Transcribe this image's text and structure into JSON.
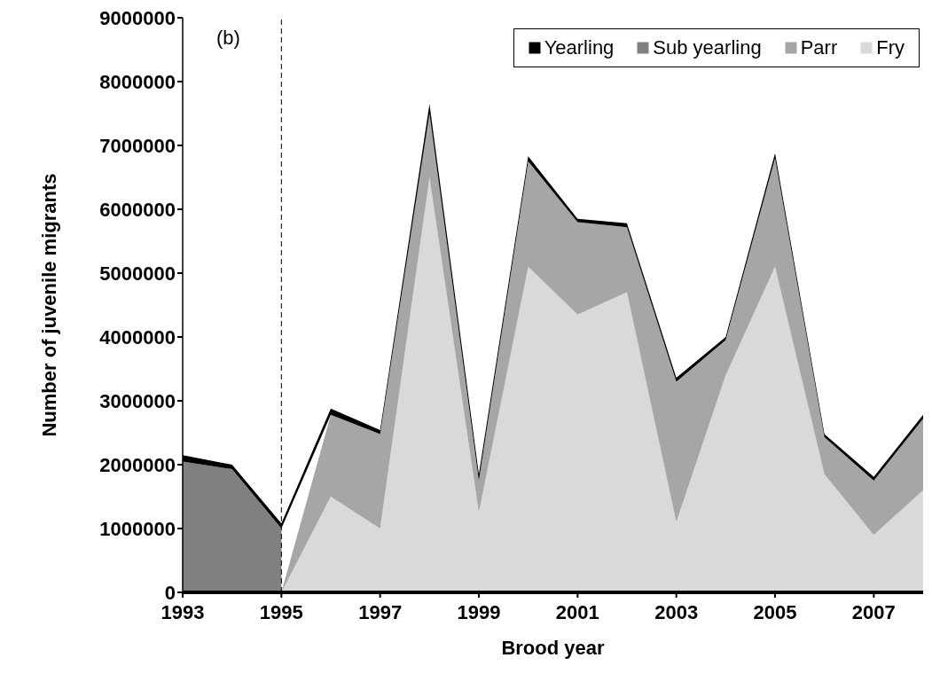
{
  "chart_data": {
    "type": "area",
    "stacked": true,
    "xlabel": "Brood year",
    "ylabel": "Number of juvenile migrants",
    "annotations": [
      "(b)"
    ],
    "x": [
      1993,
      1994,
      1995,
      1996,
      1997,
      1998,
      1999,
      2000,
      2001,
      2002,
      2003,
      2004,
      2005,
      2006,
      2007,
      2008
    ],
    "series": [
      {
        "name": "Fry",
        "color": "#d9d9d9",
        "values": [
          null,
          null,
          0,
          1500000,
          1000000,
          6500000,
          1250000,
          5100000,
          4350000,
          4700000,
          1100000,
          3400000,
          5100000,
          1850000,
          900000,
          1600000
        ]
      },
      {
        "name": "Parr",
        "color": "#a6a6a6",
        "values": [
          null,
          null,
          0,
          1280000,
          1480000,
          1000000,
          500000,
          1650000,
          1450000,
          1020000,
          2200000,
          550000,
          1700000,
          580000,
          850000,
          1120000
        ]
      },
      {
        "name": "Sub yearling",
        "color": "#808080",
        "values": [
          2050000,
          1930000,
          1000000,
          null,
          null,
          null,
          null,
          null,
          null,
          null,
          null,
          null,
          null,
          null,
          null,
          null
        ]
      },
      {
        "name": "Yearling",
        "color": "#000000",
        "values": [
          100000,
          70000,
          80000,
          100000,
          60000,
          150000,
          100000,
          80000,
          50000,
          60000,
          60000,
          50000,
          80000,
          50000,
          60000,
          60000
        ]
      }
    ],
    "xlim": [
      1993,
      2008
    ],
    "xticks": [
      1993,
      1995,
      1997,
      1999,
      2001,
      2003,
      2005,
      2007
    ],
    "ylim": [
      0,
      9000000
    ],
    "yticks": [
      0,
      1000000,
      2000000,
      3000000,
      4000000,
      5000000,
      6000000,
      7000000,
      8000000,
      9000000
    ],
    "ref_lines": [
      {
        "axis": "x",
        "value": 1995,
        "line_style": "dashed",
        "color": "#000000"
      }
    ],
    "legend": "top right",
    "grid": false
  }
}
